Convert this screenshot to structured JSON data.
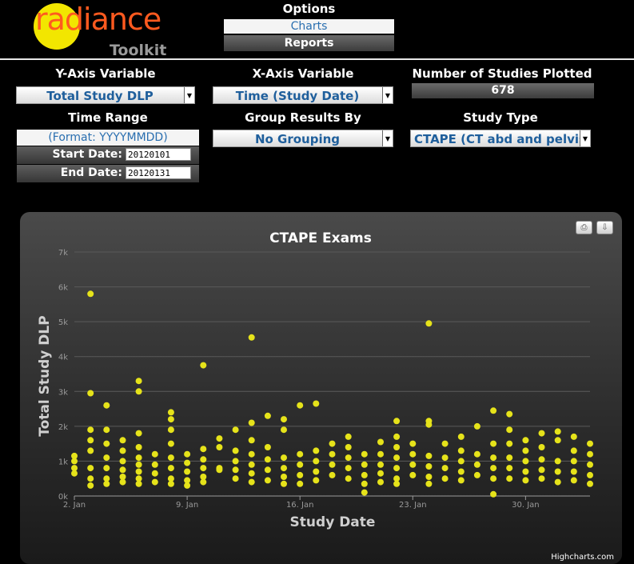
{
  "logo": {
    "word": "radiance",
    "sub": "Toolkit"
  },
  "options": {
    "title": "Options",
    "charts": "Charts",
    "reports": "Reports"
  },
  "controls": {
    "y_axis_label": "Y-Axis Variable",
    "y_axis_value": "Total Study DLP",
    "x_axis_label": "X-Axis Variable",
    "x_axis_value": "Time (Study Date)",
    "num_label": "Number of Studies Plotted",
    "num_value": "678",
    "time_range_label": "Time Range",
    "format_hint": "(Format: YYYYMMDD)",
    "start_label": "Start Date:",
    "start_value": "20120101",
    "end_label": "End Date:",
    "end_value": "20120131",
    "group_label": "Group Results By",
    "group_value": "No Grouping",
    "study_type_label": "Study Type",
    "study_type_value": "CTAPE (CT abd and pelvis"
  },
  "credit": "Highcharts.com",
  "colors": {
    "points": "#e6e31a",
    "grid": "#5a5a5a",
    "panel": "#2e2e2e"
  },
  "icons": {
    "print": "printer-icon",
    "export": "download-icon"
  },
  "chart_data": {
    "type": "scatter",
    "title": "CTAPE Exams",
    "xlabel": "Study Date",
    "ylabel": "Total Study DLP",
    "xlim": [
      "2012-01-02",
      "2012-02-01"
    ],
    "ylim": [
      0,
      7000
    ],
    "x_ticks": [
      "2. Jan",
      "9. Jan",
      "16. Jan",
      "23. Jan",
      "30. Jan"
    ],
    "y_ticks": [
      "0k",
      "1k",
      "2k",
      "3k",
      "4k",
      "5k",
      "6k",
      "7k"
    ],
    "grid": true,
    "legend": false,
    "series": [
      {
        "points": [
          [
            "2012-01-02",
            650
          ],
          [
            "2012-01-02",
            800
          ],
          [
            "2012-01-02",
            1000
          ],
          [
            "2012-01-02",
            1150
          ],
          [
            "2012-01-03",
            5800
          ],
          [
            "2012-01-03",
            2950
          ],
          [
            "2012-01-03",
            1900
          ],
          [
            "2012-01-03",
            1600
          ],
          [
            "2012-01-03",
            1300
          ],
          [
            "2012-01-03",
            800
          ],
          [
            "2012-01-03",
            500
          ],
          [
            "2012-01-03",
            300
          ],
          [
            "2012-01-04",
            2600
          ],
          [
            "2012-01-04",
            1900
          ],
          [
            "2012-01-04",
            1500
          ],
          [
            "2012-01-04",
            1100
          ],
          [
            "2012-01-04",
            800
          ],
          [
            "2012-01-04",
            500
          ],
          [
            "2012-01-04",
            350
          ],
          [
            "2012-01-05",
            1600
          ],
          [
            "2012-01-05",
            1300
          ],
          [
            "2012-01-05",
            1000
          ],
          [
            "2012-01-05",
            750
          ],
          [
            "2012-01-05",
            550
          ],
          [
            "2012-01-05",
            400
          ],
          [
            "2012-01-06",
            3300
          ],
          [
            "2012-01-06",
            3000
          ],
          [
            "2012-01-06",
            1800
          ],
          [
            "2012-01-06",
            1400
          ],
          [
            "2012-01-06",
            1100
          ],
          [
            "2012-01-06",
            900
          ],
          [
            "2012-01-06",
            700
          ],
          [
            "2012-01-06",
            500
          ],
          [
            "2012-01-06",
            350
          ],
          [
            "2012-01-07",
            1200
          ],
          [
            "2012-01-07",
            900
          ],
          [
            "2012-01-07",
            650
          ],
          [
            "2012-01-07",
            400
          ],
          [
            "2012-01-08",
            2400
          ],
          [
            "2012-01-08",
            2200
          ],
          [
            "2012-01-08",
            1900
          ],
          [
            "2012-01-08",
            1500
          ],
          [
            "2012-01-08",
            1100
          ],
          [
            "2012-01-08",
            800
          ],
          [
            "2012-01-08",
            500
          ],
          [
            "2012-01-08",
            350
          ],
          [
            "2012-01-09",
            1200
          ],
          [
            "2012-01-09",
            950
          ],
          [
            "2012-01-09",
            700
          ],
          [
            "2012-01-09",
            450
          ],
          [
            "2012-01-09",
            300
          ],
          [
            "2012-01-10",
            3750
          ],
          [
            "2012-01-10",
            1350
          ],
          [
            "2012-01-10",
            1050
          ],
          [
            "2012-01-10",
            800
          ],
          [
            "2012-01-10",
            550
          ],
          [
            "2012-01-10",
            400
          ],
          [
            "2012-01-11",
            1650
          ],
          [
            "2012-01-11",
            1400
          ],
          [
            "2012-01-11",
            800
          ],
          [
            "2012-01-11",
            750
          ],
          [
            "2012-01-12",
            1900
          ],
          [
            "2012-01-12",
            1300
          ],
          [
            "2012-01-12",
            1000
          ],
          [
            "2012-01-12",
            750
          ],
          [
            "2012-01-12",
            500
          ],
          [
            "2012-01-13",
            4550
          ],
          [
            "2012-01-13",
            2100
          ],
          [
            "2012-01-13",
            1600
          ],
          [
            "2012-01-13",
            1200
          ],
          [
            "2012-01-13",
            900
          ],
          [
            "2012-01-13",
            650
          ],
          [
            "2012-01-13",
            400
          ],
          [
            "2012-01-14",
            2300
          ],
          [
            "2012-01-14",
            1400
          ],
          [
            "2012-01-14",
            1050
          ],
          [
            "2012-01-14",
            750
          ],
          [
            "2012-01-14",
            450
          ],
          [
            "2012-01-15",
            2200
          ],
          [
            "2012-01-15",
            1900
          ],
          [
            "2012-01-15",
            1100
          ],
          [
            "2012-01-15",
            800
          ],
          [
            "2012-01-15",
            550
          ],
          [
            "2012-01-15",
            350
          ],
          [
            "2012-01-16",
            2600
          ],
          [
            "2012-01-16",
            1200
          ],
          [
            "2012-01-16",
            900
          ],
          [
            "2012-01-16",
            600
          ],
          [
            "2012-01-16",
            350
          ],
          [
            "2012-01-17",
            2650
          ],
          [
            "2012-01-17",
            1300
          ],
          [
            "2012-01-17",
            1000
          ],
          [
            "2012-01-17",
            700
          ],
          [
            "2012-01-17",
            450
          ],
          [
            "2012-01-18",
            1500
          ],
          [
            "2012-01-18",
            1200
          ],
          [
            "2012-01-18",
            900
          ],
          [
            "2012-01-18",
            600
          ],
          [
            "2012-01-19",
            1700
          ],
          [
            "2012-01-19",
            1400
          ],
          [
            "2012-01-19",
            1100
          ],
          [
            "2012-01-19",
            800
          ],
          [
            "2012-01-19",
            500
          ],
          [
            "2012-01-20",
            1200
          ],
          [
            "2012-01-20",
            900
          ],
          [
            "2012-01-20",
            600
          ],
          [
            "2012-01-20",
            350
          ],
          [
            "2012-01-20",
            100
          ],
          [
            "2012-01-21",
            1550
          ],
          [
            "2012-01-21",
            1200
          ],
          [
            "2012-01-21",
            900
          ],
          [
            "2012-01-21",
            650
          ],
          [
            "2012-01-21",
            400
          ],
          [
            "2012-01-22",
            2150
          ],
          [
            "2012-01-22",
            1700
          ],
          [
            "2012-01-22",
            1400
          ],
          [
            "2012-01-22",
            1100
          ],
          [
            "2012-01-22",
            800
          ],
          [
            "2012-01-22",
            500
          ],
          [
            "2012-01-22",
            350
          ],
          [
            "2012-01-23",
            1500
          ],
          [
            "2012-01-23",
            1200
          ],
          [
            "2012-01-23",
            900
          ],
          [
            "2012-01-23",
            600
          ],
          [
            "2012-01-24",
            4950
          ],
          [
            "2012-01-24",
            2150
          ],
          [
            "2012-01-24",
            2050
          ],
          [
            "2012-01-24",
            1150
          ],
          [
            "2012-01-24",
            850
          ],
          [
            "2012-01-24",
            550
          ],
          [
            "2012-01-24",
            350
          ],
          [
            "2012-01-25",
            1500
          ],
          [
            "2012-01-25",
            1100
          ],
          [
            "2012-01-25",
            800
          ],
          [
            "2012-01-25",
            500
          ],
          [
            "2012-01-26",
            1700
          ],
          [
            "2012-01-26",
            1300
          ],
          [
            "2012-01-26",
            1000
          ],
          [
            "2012-01-26",
            700
          ],
          [
            "2012-01-26",
            450
          ],
          [
            "2012-01-27",
            2000
          ],
          [
            "2012-01-27",
            1200
          ],
          [
            "2012-01-27",
            900
          ],
          [
            "2012-01-27",
            600
          ],
          [
            "2012-01-28",
            2450
          ],
          [
            "2012-01-28",
            1500
          ],
          [
            "2012-01-28",
            1100
          ],
          [
            "2012-01-28",
            800
          ],
          [
            "2012-01-28",
            500
          ],
          [
            "2012-01-28",
            50
          ],
          [
            "2012-01-29",
            2350
          ],
          [
            "2012-01-29",
            1900
          ],
          [
            "2012-01-29",
            1500
          ],
          [
            "2012-01-29",
            1100
          ],
          [
            "2012-01-29",
            800
          ],
          [
            "2012-01-29",
            500
          ],
          [
            "2012-01-30",
            1600
          ],
          [
            "2012-01-30",
            1300
          ],
          [
            "2012-01-30",
            1000
          ],
          [
            "2012-01-30",
            700
          ],
          [
            "2012-01-30",
            450
          ],
          [
            "2012-01-31",
            1800
          ],
          [
            "2012-01-31",
            1400
          ],
          [
            "2012-01-31",
            1050
          ],
          [
            "2012-01-31",
            750
          ],
          [
            "2012-01-31",
            500
          ],
          [
            "2012-02-01",
            1850
          ],
          [
            "2012-02-01",
            1600
          ],
          [
            "2012-02-01",
            1000
          ],
          [
            "2012-02-01",
            700
          ],
          [
            "2012-02-01",
            400
          ],
          [
            "2012-02-02",
            1700
          ],
          [
            "2012-02-02",
            1300
          ],
          [
            "2012-02-02",
            1000
          ],
          [
            "2012-02-02",
            700
          ],
          [
            "2012-02-02",
            450
          ],
          [
            "2012-02-03",
            1500
          ],
          [
            "2012-02-03",
            1200
          ],
          [
            "2012-02-03",
            900
          ],
          [
            "2012-02-03",
            600
          ],
          [
            "2012-02-03",
            350
          ]
        ]
      }
    ]
  }
}
